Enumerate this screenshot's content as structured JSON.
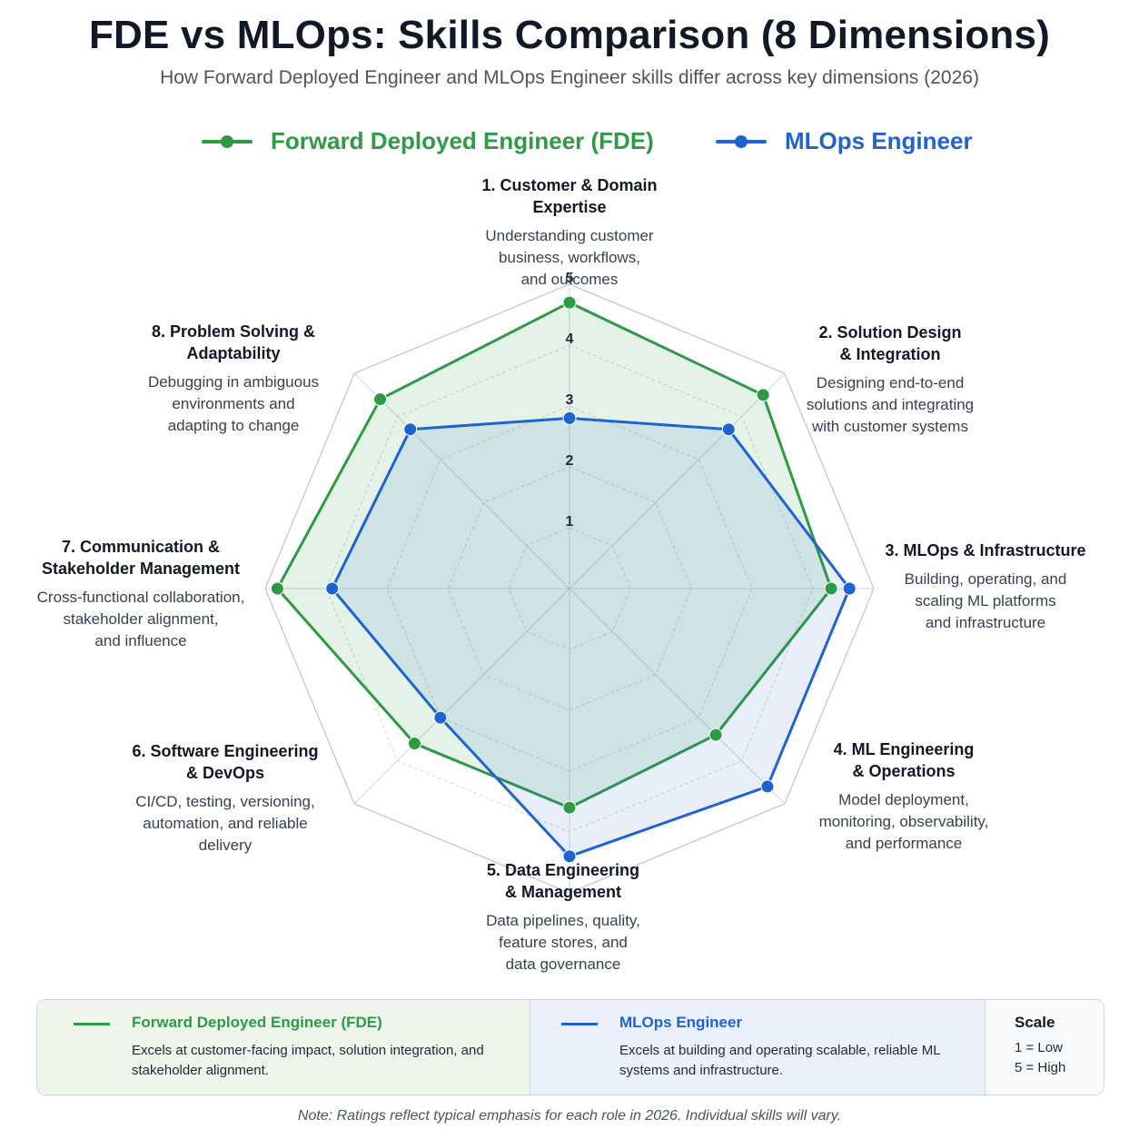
{
  "header": {
    "title": "FDE vs MLOps: Skills Comparison (8 Dimensions)",
    "subtitle": "How Forward Deployed Engineer and MLOps Engineer skills differ across key dimensions (2026)"
  },
  "colors": {
    "fde": "#2e9a44",
    "mlops": "#1f63d0",
    "grid": "#c9cdd2"
  },
  "chart_data": {
    "type": "radar",
    "title": "FDE vs MLOps: Skills Comparison (8 Dimensions)",
    "rlim": [
      0,
      5
    ],
    "ticks": [
      "1",
      "2",
      "3",
      "4",
      "5"
    ],
    "grid": true,
    "legend_position": "top",
    "axes": [
      {
        "name": "1. Customer & Domain Expertise",
        "lines": [
          "1. Customer & Domain",
          "Expertise"
        ],
        "desc": [
          "Understanding customer",
          "business, workflows,",
          "and outcomes"
        ]
      },
      {
        "name": "2. Solution Design & Integration",
        "lines": [
          "2. Solution Design",
          "& Integration"
        ],
        "desc": [
          "Designing end-to-end",
          "solutions and integrating",
          "with customer systems"
        ]
      },
      {
        "name": "3. MLOps & Infrastructure",
        "lines": [
          "3. MLOps & Infrastructure"
        ],
        "desc": [
          "Building, operating, and",
          "scaling ML platforms",
          "and infrastructure"
        ]
      },
      {
        "name": "4. ML Engineering & Operations",
        "lines": [
          "4. ML Engineering",
          "& Operations"
        ],
        "desc": [
          "Model deployment,",
          "monitoring, observability,",
          "and performance"
        ]
      },
      {
        "name": "5. Data Engineering & Management",
        "lines": [
          "5. Data Engineering",
          "& Management"
        ],
        "desc": [
          "Data pipelines, quality,",
          "feature stores, and",
          "data governance"
        ]
      },
      {
        "name": "6. Software Engineering & DevOps",
        "lines": [
          "6. Software Engineering",
          "& DevOps"
        ],
        "desc": [
          "CI/CD, testing, versioning,",
          "automation, and reliable",
          "delivery"
        ]
      },
      {
        "name": "7. Communication & Stakeholder Management",
        "lines": [
          "7. Communication &",
          "Stakeholder Management"
        ],
        "desc": [
          "Cross-functional collaboration,",
          "stakeholder alignment,",
          "and influence"
        ]
      },
      {
        "name": "8. Problem Solving & Adaptability",
        "lines": [
          "8. Problem Solving &",
          "Adaptability"
        ],
        "desc": [
          "Debugging in ambiguous",
          "environments and",
          "adapting to change"
        ]
      }
    ],
    "series": [
      {
        "name": "Forward Deployed Engineer (FDE)",
        "values": [
          4.7,
          4.5,
          4.3,
          3.4,
          3.6,
          3.6,
          4.8,
          4.4
        ]
      },
      {
        "name": "MLOps Engineer",
        "values": [
          2.8,
          3.7,
          4.6,
          4.6,
          4.4,
          3.0,
          3.9,
          3.7
        ]
      }
    ]
  },
  "legend": {
    "fde_label": "Forward Deployed Engineer (FDE)",
    "mlops_label": "MLOps Engineer",
    "fde_desc": "Excels at customer-facing impact, solution integration, and stakeholder alignment.",
    "mlops_desc": "Excels at building and operating scalable, reliable ML systems and infrastructure.",
    "scale_title": "Scale",
    "scale_low": "1 = Low",
    "scale_high": "5 = High"
  },
  "note": "Note: Ratings reflect typical emphasis for each role in 2026. Individual skills will vary."
}
